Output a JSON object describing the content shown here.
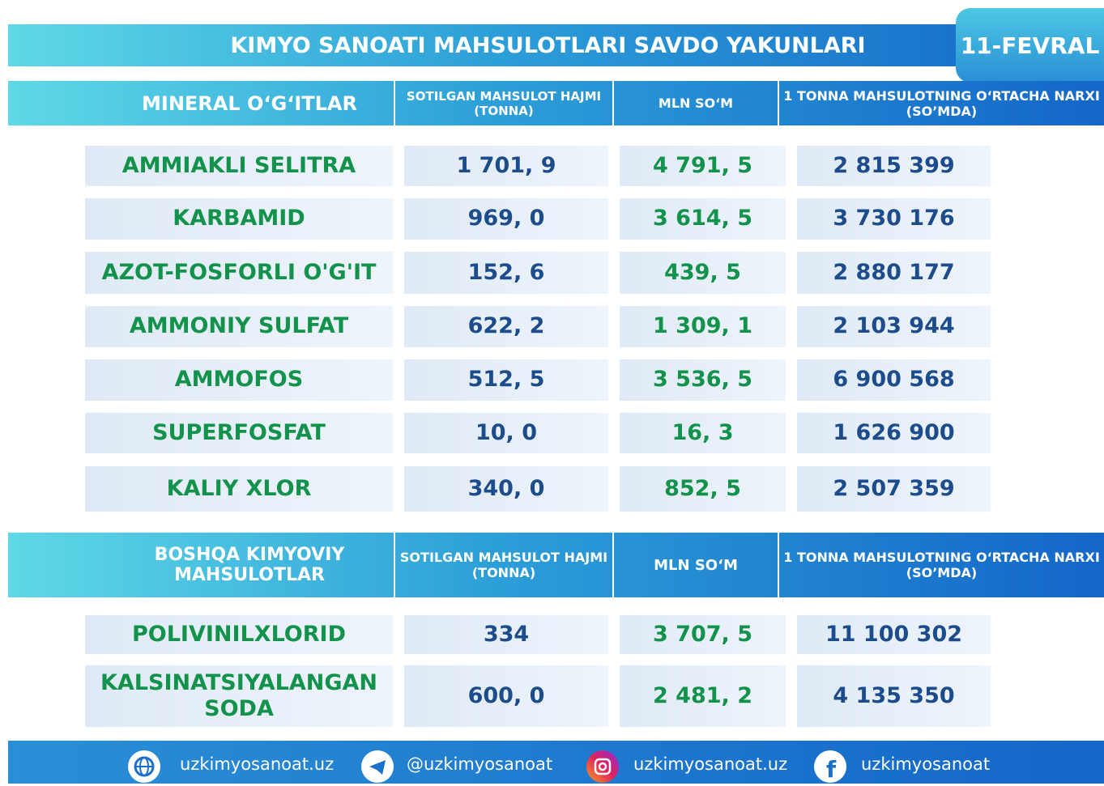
{
  "header": {
    "title": "KIMYO SANOATI MAHSULOTLARI SAVDO YAKUNLARI",
    "date": "11-FEVRAL"
  },
  "sections": [
    {
      "columns": [
        "MINERAL O‘G‘ITLAR",
        "SOTILGAN MAHSULOT HAJMI (TONNA)",
        "MLN SO‘M",
        "1 TONNA MAHSULOTNING O‘RTACHA NARXI (SO’MDA)"
      ],
      "rows": [
        [
          "AMMIAKLI SELITRA",
          "1 701, 9",
          "4 791, 5",
          "2 815 399"
        ],
        [
          "KARBAMID",
          "969, 0",
          "3 614, 5",
          "3 730 176"
        ],
        [
          "AZOT-FOSFORLI O'G'IT",
          "152, 6",
          "439, 5",
          "2 880 177"
        ],
        [
          "AMMONIY SULFAT",
          "622, 2",
          "1 309, 1",
          "2 103 944"
        ],
        [
          "AMMOFOS",
          "512, 5",
          "3 536, 5",
          "6 900 568"
        ],
        [
          "SUPERFOSFAT",
          "10, 0",
          "16, 3",
          "1 626 900"
        ],
        [
          "KALIY XLOR",
          "340, 0",
          "852, 5",
          "2 507 359"
        ]
      ]
    },
    {
      "columns": [
        "BOSHQA KIMYOVIY MAHSULOTLAR",
        "SOTILGAN MAHSULOT HAJMI (TONNA)",
        "MLN SO‘M",
        "1 TONNA MAHSULOTNING O‘RTACHA NARXI (SO’MDA)"
      ],
      "rows": [
        [
          "POLIVINILXLORID",
          "334",
          "3 707, 5",
          "11 100 302"
        ],
        [
          "KALSINATSIYALANGAN SODA",
          "600, 0",
          "2 481, 2",
          "4 135 350"
        ]
      ]
    }
  ],
  "footer": {
    "links": [
      "uzkimyosanoat.uz",
      "@uzkimyosanoat",
      "uzkimyosanoat.uz",
      "uzkimyosanoat"
    ]
  }
}
